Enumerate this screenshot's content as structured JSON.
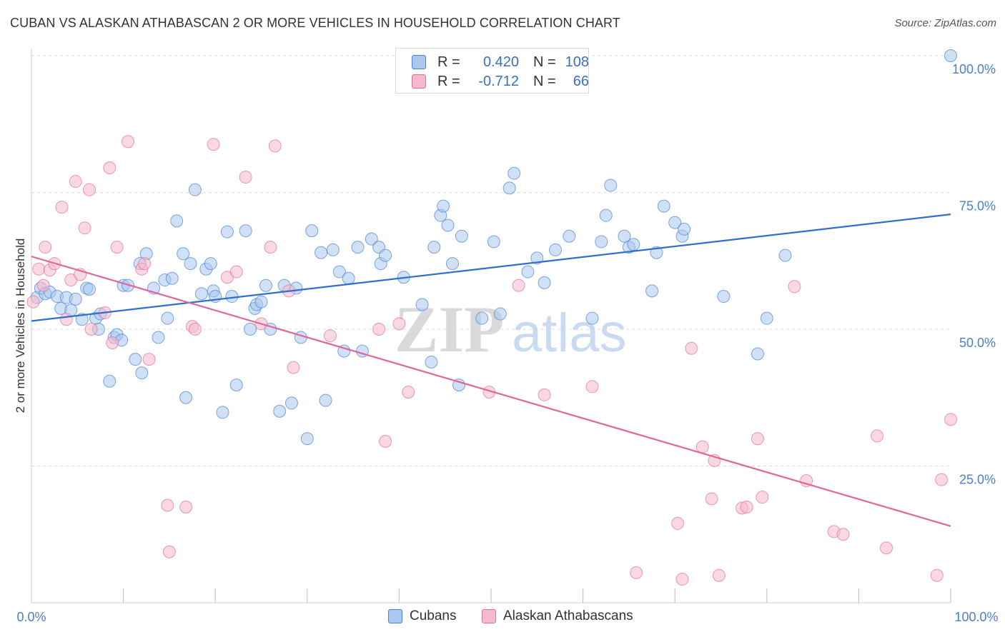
{
  "title": "CUBAN VS ALASKAN ATHABASCAN 2 OR MORE VEHICLES IN HOUSEHOLD CORRELATION CHART",
  "source": "Source: ZipAtlas.com",
  "watermark": {
    "zip": "ZIP",
    "atlas": "atlas"
  },
  "legend": {
    "rows": [
      {
        "r_label": "R =",
        "r_value": "0.420",
        "n_label": "N =",
        "n_value": "108",
        "color": "#aac8ef"
      },
      {
        "r_label": "R =",
        "r_value": "-0.712",
        "n_label": "N =",
        "n_value": "66",
        "color": "#f6b8cc"
      }
    ]
  },
  "bottom_legend": [
    {
      "label": "Cubans",
      "color": "#aac8ef"
    },
    {
      "label": "Alaskan Athabascans",
      "color": "#f6b8cc"
    }
  ],
  "chart_data": {
    "type": "scatter",
    "title": "CUBAN VS ALASKAN ATHABASCAN 2 OR MORE VEHICLES IN HOUSEHOLD CORRELATION CHART",
    "xlabel": "",
    "ylabel": "2 or more Vehicles in Household",
    "xlim": [
      0,
      100
    ],
    "ylim": [
      0,
      100
    ],
    "x_tick_labels": [
      "0.0%",
      "100.0%"
    ],
    "y_tick_labels": [
      "25.0%",
      "50.0%",
      "75.0%",
      "100.0%"
    ],
    "y_ticks": [
      25,
      50,
      75,
      100
    ],
    "grid": "horizontal dashed",
    "legend_position": "top-center",
    "series": [
      {
        "name": "Cubans",
        "color": "#4a80d6",
        "fill": "#aac8ef",
        "trend": {
          "x": [
            0,
            100
          ],
          "y": [
            51.5,
            71.0
          ]
        },
        "points": [
          [
            0.6,
            55.8
          ],
          [
            1.0,
            57.5
          ],
          [
            1.5,
            56.5
          ],
          [
            2.0,
            56.8
          ],
          [
            2.8,
            56.0
          ],
          [
            3.2,
            53.8
          ],
          [
            3.8,
            55.8
          ],
          [
            4.3,
            53.5
          ],
          [
            4.8,
            55.5
          ],
          [
            5.5,
            51.8
          ],
          [
            6.0,
            57.5
          ],
          [
            6.3,
            57.3
          ],
          [
            7.0,
            52.0
          ],
          [
            7.3,
            50.0
          ],
          [
            7.5,
            52.8
          ],
          [
            8.5,
            40.5
          ],
          [
            9.0,
            48.5
          ],
          [
            9.3,
            49.0
          ],
          [
            9.8,
            48.0
          ],
          [
            10.0,
            58.0
          ],
          [
            10.5,
            58.0
          ],
          [
            11.3,
            44.5
          ],
          [
            12.0,
            42.0
          ],
          [
            12.5,
            63.8
          ],
          [
            11.8,
            62.0
          ],
          [
            13.3,
            57.5
          ],
          [
            13.8,
            48.5
          ],
          [
            14.5,
            59.0
          ],
          [
            14.8,
            52.0
          ],
          [
            15.3,
            59.3
          ],
          [
            15.8,
            69.8
          ],
          [
            16.5,
            63.8
          ],
          [
            16.8,
            37.5
          ],
          [
            17.3,
            62.0
          ],
          [
            17.8,
            75.5
          ],
          [
            18.5,
            56.5
          ],
          [
            19.0,
            61.0
          ],
          [
            19.5,
            62.0
          ],
          [
            19.8,
            57.0
          ],
          [
            20.0,
            56.0
          ],
          [
            20.8,
            34.8
          ],
          [
            21.3,
            67.8
          ],
          [
            21.8,
            56.0
          ],
          [
            22.3,
            39.8
          ],
          [
            23.3,
            68.0
          ],
          [
            23.8,
            50.0
          ],
          [
            24.3,
            53.8
          ],
          [
            24.5,
            54.5
          ],
          [
            25.0,
            55.0
          ],
          [
            25.5,
            58.0
          ],
          [
            26.0,
            50.0
          ],
          [
            27.0,
            35.0
          ],
          [
            27.5,
            58.0
          ],
          [
            28.3,
            36.5
          ],
          [
            28.8,
            57.5
          ],
          [
            29.3,
            48.5
          ],
          [
            30.0,
            30.0
          ],
          [
            30.5,
            68.0
          ],
          [
            31.5,
            64.0
          ],
          [
            32.0,
            37.0
          ],
          [
            32.8,
            64.5
          ],
          [
            33.5,
            60.5
          ],
          [
            34.0,
            46.0
          ],
          [
            34.5,
            59.3
          ],
          [
            35.5,
            65.0
          ],
          [
            36.0,
            46.0
          ],
          [
            37.0,
            66.5
          ],
          [
            37.8,
            65.0
          ],
          [
            38.0,
            62.0
          ],
          [
            38.5,
            63.5
          ],
          [
            40.5,
            59.5
          ],
          [
            42.5,
            54.5
          ],
          [
            43.5,
            44.0
          ],
          [
            43.8,
            65.0
          ],
          [
            44.5,
            70.8
          ],
          [
            44.8,
            72.5
          ],
          [
            45.3,
            69.0
          ],
          [
            45.8,
            62.0
          ],
          [
            46.5,
            39.8
          ],
          [
            46.8,
            67.0
          ],
          [
            49.0,
            52.0
          ],
          [
            50.3,
            66.0
          ],
          [
            51.0,
            52.8
          ],
          [
            52.0,
            75.8
          ],
          [
            52.5,
            78.5
          ],
          [
            54.0,
            60.5
          ],
          [
            55.0,
            63.0
          ],
          [
            55.8,
            58.5
          ],
          [
            57.0,
            64.5
          ],
          [
            58.5,
            67.0
          ],
          [
            61.0,
            52.0
          ],
          [
            62.0,
            66.0
          ],
          [
            62.5,
            70.8
          ],
          [
            63.0,
            76.3
          ],
          [
            64.5,
            67.0
          ],
          [
            65.0,
            65.0
          ],
          [
            65.5,
            65.5
          ],
          [
            67.5,
            57.0
          ],
          [
            68.0,
            64.0
          ],
          [
            68.8,
            72.5
          ],
          [
            70.0,
            69.5
          ],
          [
            70.8,
            67.0
          ],
          [
            71.0,
            68.3
          ],
          [
            75.3,
            56.0
          ],
          [
            79.0,
            45.5
          ],
          [
            80.0,
            52.0
          ],
          [
            82.0,
            63.5
          ],
          [
            100.0,
            100.0
          ]
        ]
      },
      {
        "name": "Alaskan Athabascans",
        "color": "#e0709a",
        "fill": "#f6b8cc",
        "trend": {
          "x": [
            0,
            100
          ],
          "y": [
            63.3,
            14.0
          ]
        },
        "points": [
          [
            0.2,
            55.0
          ],
          [
            0.8,
            61.0
          ],
          [
            1.3,
            58.0
          ],
          [
            1.5,
            65.0
          ],
          [
            2.0,
            60.8
          ],
          [
            2.5,
            62.0
          ],
          [
            3.3,
            72.3
          ],
          [
            3.8,
            51.8
          ],
          [
            4.3,
            59.0
          ],
          [
            4.8,
            77.0
          ],
          [
            5.3,
            60.0
          ],
          [
            5.8,
            68.5
          ],
          [
            6.3,
            75.5
          ],
          [
            6.5,
            50.0
          ],
          [
            8.0,
            53.0
          ],
          [
            8.5,
            79.5
          ],
          [
            8.8,
            47.5
          ],
          [
            9.3,
            65.0
          ],
          [
            10.5,
            84.3
          ],
          [
            12.0,
            61.0
          ],
          [
            12.3,
            62.0
          ],
          [
            12.8,
            44.5
          ],
          [
            14.8,
            17.8
          ],
          [
            15.0,
            9.3
          ],
          [
            16.8,
            17.5
          ],
          [
            17.5,
            50.5
          ],
          [
            17.8,
            50.0
          ],
          [
            19.8,
            83.8
          ],
          [
            21.3,
            59.5
          ],
          [
            22.3,
            60.5
          ],
          [
            23.3,
            77.8
          ],
          [
            25.0,
            51.0
          ],
          [
            26.0,
            65.0
          ],
          [
            26.5,
            83.5
          ],
          [
            28.0,
            57.0
          ],
          [
            28.5,
            43.0
          ],
          [
            32.5,
            48.8
          ],
          [
            37.8,
            50.0
          ],
          [
            38.5,
            29.5
          ],
          [
            40.0,
            51.0
          ],
          [
            41.0,
            38.5
          ],
          [
            49.8,
            38.5
          ],
          [
            53.0,
            58.0
          ],
          [
            55.8,
            38.0
          ],
          [
            61.0,
            39.5
          ],
          [
            65.8,
            5.5
          ],
          [
            70.3,
            14.5
          ],
          [
            70.8,
            4.3
          ],
          [
            71.8,
            46.5
          ],
          [
            73.0,
            28.5
          ],
          [
            74.0,
            19.0
          ],
          [
            74.3,
            26.0
          ],
          [
            74.8,
            5.0
          ],
          [
            77.3,
            17.3
          ],
          [
            77.8,
            17.5
          ],
          [
            79.0,
            30.0
          ],
          [
            79.5,
            19.3
          ],
          [
            83.0,
            57.8
          ],
          [
            84.3,
            22.3
          ],
          [
            87.3,
            13.0
          ],
          [
            88.3,
            12.5
          ],
          [
            92.0,
            30.5
          ],
          [
            93.0,
            10.0
          ],
          [
            99.0,
            22.5
          ],
          [
            100.0,
            33.5
          ],
          [
            98.5,
            5.0
          ]
        ]
      }
    ]
  }
}
